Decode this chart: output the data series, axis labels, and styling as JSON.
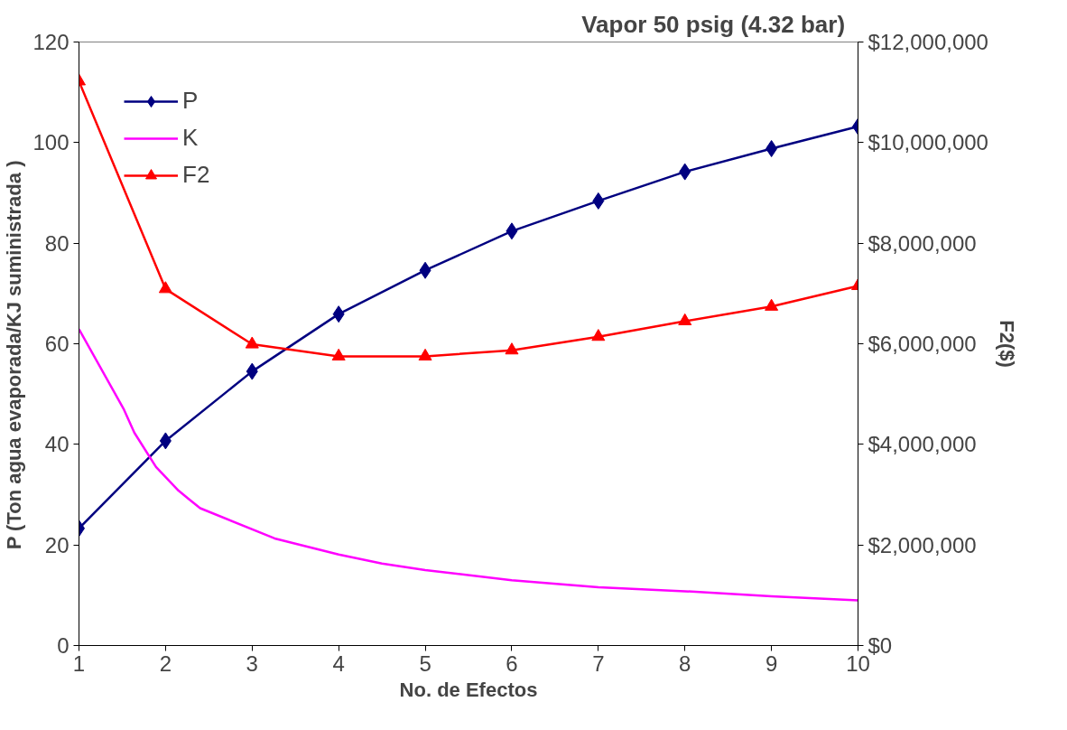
{
  "chart_data": {
    "type": "line",
    "title": "Vapor 50 psig   (4.32 bar)",
    "xlabel": "No. de Efectos",
    "ylabel": "P (Ton agua evaporada/KJ suministrada     )",
    "y2label": "F2($)",
    "xlim": [
      1,
      10
    ],
    "xticks": [
      1,
      2,
      3,
      4,
      5,
      6,
      7,
      8,
      9,
      10
    ],
    "ylim": [
      0,
      120
    ],
    "yticks": [
      0,
      20,
      40,
      60,
      80,
      100,
      120
    ],
    "y2lim": [
      0,
      12000000
    ],
    "y2ticks": [
      {
        "value": 0,
        "label": "$0"
      },
      {
        "value": 2000000,
        "label": "$2,000,000"
      },
      {
        "value": 4000000,
        "label": "$4,000,000"
      },
      {
        "value": 6000000,
        "label": "$6,000,000"
      },
      {
        "value": 8000000,
        "label": "$8,000,000"
      },
      {
        "value": 10000000,
        "label": "$10,000,000"
      },
      {
        "value": 12000000,
        "label": "$12,000,000"
      }
    ],
    "grid": false,
    "legend": "top left",
    "series": [
      {
        "name": "P",
        "color": "#000080",
        "marker": "diamond",
        "x": [
          1,
          2,
          3,
          4,
          5,
          6,
          7,
          8,
          9,
          10
        ],
        "values": [
          23.3,
          40.7,
          54.5,
          65.9,
          74.6,
          82.4,
          88.4,
          94.2,
          98.8,
          103.2
        ]
      },
      {
        "name": "K",
        "color": "#ff00ff",
        "marker": "none",
        "x": [
          1,
          1.52,
          1.64,
          1.89,
          2.15,
          2.27,
          2.4,
          3.26,
          4,
          4.5,
          5,
          6,
          7,
          8,
          9,
          10
        ],
        "values": [
          62.9,
          46.9,
          42.3,
          35.5,
          30.8,
          29.1,
          27.3,
          21.3,
          18.1,
          16.3,
          15.0,
          13.0,
          11.6,
          10.8,
          9.8,
          9.0
        ]
      },
      {
        "name": "F2",
        "color": "#ff0000",
        "marker": "triangle",
        "axis": "y2",
        "x": [
          1,
          2,
          3,
          4,
          5,
          6,
          7,
          8,
          9,
          10
        ],
        "values": [
          11220000,
          7090000,
          5990000,
          5750000,
          5750000,
          5870000,
          6140000,
          6450000,
          6740000,
          7150000
        ]
      }
    ]
  }
}
